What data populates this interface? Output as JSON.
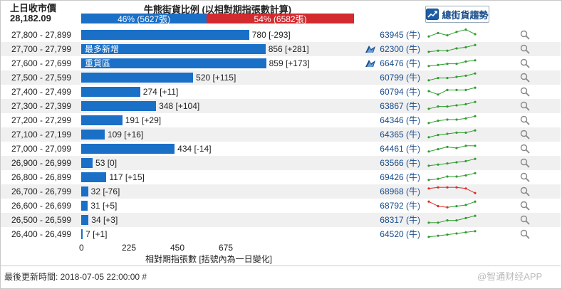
{
  "header": {
    "prev_close_label": "上日收市價",
    "prev_close_value": "28,182.09",
    "ratio_title": "牛熊街貨比例 (以相對期指張數計算)",
    "bull_label": "46% (5627張)",
    "bear_label": "54% (6582張)",
    "bull_pct": 46,
    "bear_pct": 54,
    "trend_button": "總街貨趨勢"
  },
  "colors": {
    "bull": "#1a6fc6",
    "bear": "#d32a2f",
    "bar": "#1a6fc6",
    "spark_up": "#2e9e2e",
    "spark_down": "#d9302b"
  },
  "chart_data": {
    "type": "bar",
    "orientation": "horizontal",
    "xlabel": "相對期指張數 [括號內為一日變化]",
    "xticks": [
      0,
      225,
      450,
      675
    ],
    "xlim": [
      0,
      900
    ],
    "rows": [
      {
        "range": "27,800 - 27,899",
        "value": 780,
        "change": "[-293]",
        "count": "63945 (牛)",
        "note": "",
        "flag": false,
        "trend": "up",
        "spark": [
          3,
          6,
          4,
          7,
          9,
          5
        ]
      },
      {
        "range": "27,700 - 27,799",
        "value": 856,
        "change": "[+281]",
        "count": "62300 (牛)",
        "note": "最多新增",
        "flag": true,
        "trend": "up",
        "spark": [
          2,
          3,
          3,
          5,
          6,
          8
        ]
      },
      {
        "range": "27,600 - 27,699",
        "value": 859,
        "change": "[+173]",
        "count": "66476 (牛)",
        "note": "重貨區",
        "flag": true,
        "trend": "up",
        "spark": [
          2,
          3,
          4,
          4,
          6,
          7
        ]
      },
      {
        "range": "27,500 - 27,599",
        "value": 520,
        "change": "[+115]",
        "count": "60799 (牛)",
        "note": "",
        "flag": false,
        "trend": "up",
        "spark": [
          2,
          4,
          4,
          5,
          6,
          8
        ]
      },
      {
        "range": "27,400 - 27,499",
        "value": 274,
        "change": "[+11]",
        "count": "60794 (牛)",
        "note": "",
        "flag": false,
        "trend": "up",
        "spark": [
          5,
          2,
          6,
          6,
          6,
          8
        ]
      },
      {
        "range": "27,300 - 27,399",
        "value": 348,
        "change": "[+104]",
        "count": "63867 (牛)",
        "note": "",
        "flag": false,
        "trend": "up",
        "spark": [
          2,
          4,
          4,
          5,
          6,
          8
        ]
      },
      {
        "range": "27,200 - 27,299",
        "value": 191,
        "change": "[+29]",
        "count": "64346 (牛)",
        "note": "",
        "flag": false,
        "trend": "up",
        "spark": [
          2,
          4,
          5,
          5,
          6,
          8
        ]
      },
      {
        "range": "27,100 - 27,199",
        "value": 109,
        "change": "[+16]",
        "count": "64365 (牛)",
        "note": "",
        "flag": false,
        "trend": "up",
        "spark": [
          2,
          4,
          5,
          6,
          6,
          8
        ]
      },
      {
        "range": "27,000 - 27,099",
        "value": 434,
        "change": "[-14]",
        "count": "64461 (牛)",
        "note": "",
        "flag": false,
        "trend": "up",
        "spark": [
          2,
          4,
          6,
          5,
          7,
          7
        ]
      },
      {
        "range": "26,900 - 26,999",
        "value": 53,
        "change": "[0]",
        "count": "63566 (牛)",
        "note": "",
        "flag": false,
        "trend": "up",
        "spark": [
          2,
          3,
          4,
          5,
          6,
          8
        ]
      },
      {
        "range": "26,800 - 26,899",
        "value": 117,
        "change": "[+15]",
        "count": "69426 (牛)",
        "note": "",
        "flag": false,
        "trend": "up",
        "spark": [
          2,
          3,
          5,
          5,
          6,
          8
        ]
      },
      {
        "range": "26,700 - 26,799",
        "value": 32,
        "change": "[-76]",
        "count": "68968 (牛)",
        "note": "",
        "flag": false,
        "trend": "down",
        "spark": [
          7,
          8,
          8,
          8,
          7,
          3
        ]
      },
      {
        "range": "26,600 - 26,699",
        "value": 31,
        "change": "[+5]",
        "count": "68792 (牛)",
        "note": "",
        "flag": false,
        "trend": "mixed",
        "spark": [
          8,
          4,
          3,
          4,
          5,
          8
        ],
        "spark_colors": [
          "down",
          "down",
          "down",
          "up",
          "up",
          "up"
        ]
      },
      {
        "range": "26,500 - 26,599",
        "value": 34,
        "change": "[+3]",
        "count": "68317 (牛)",
        "note": "",
        "flag": false,
        "trend": "up",
        "spark": [
          2,
          2,
          4,
          4,
          6,
          8
        ]
      },
      {
        "range": "26,400 - 26,499",
        "value": 7,
        "change": "[+1]",
        "count": "64520 (牛)",
        "note": "",
        "flag": false,
        "trend": "up",
        "spark": [
          2,
          3,
          4,
          5,
          6,
          7
        ]
      }
    ]
  },
  "footer": {
    "updated": "最後更新時間: 2018-07-05 22:00:00 #"
  },
  "watermark": "@智通财经APP"
}
